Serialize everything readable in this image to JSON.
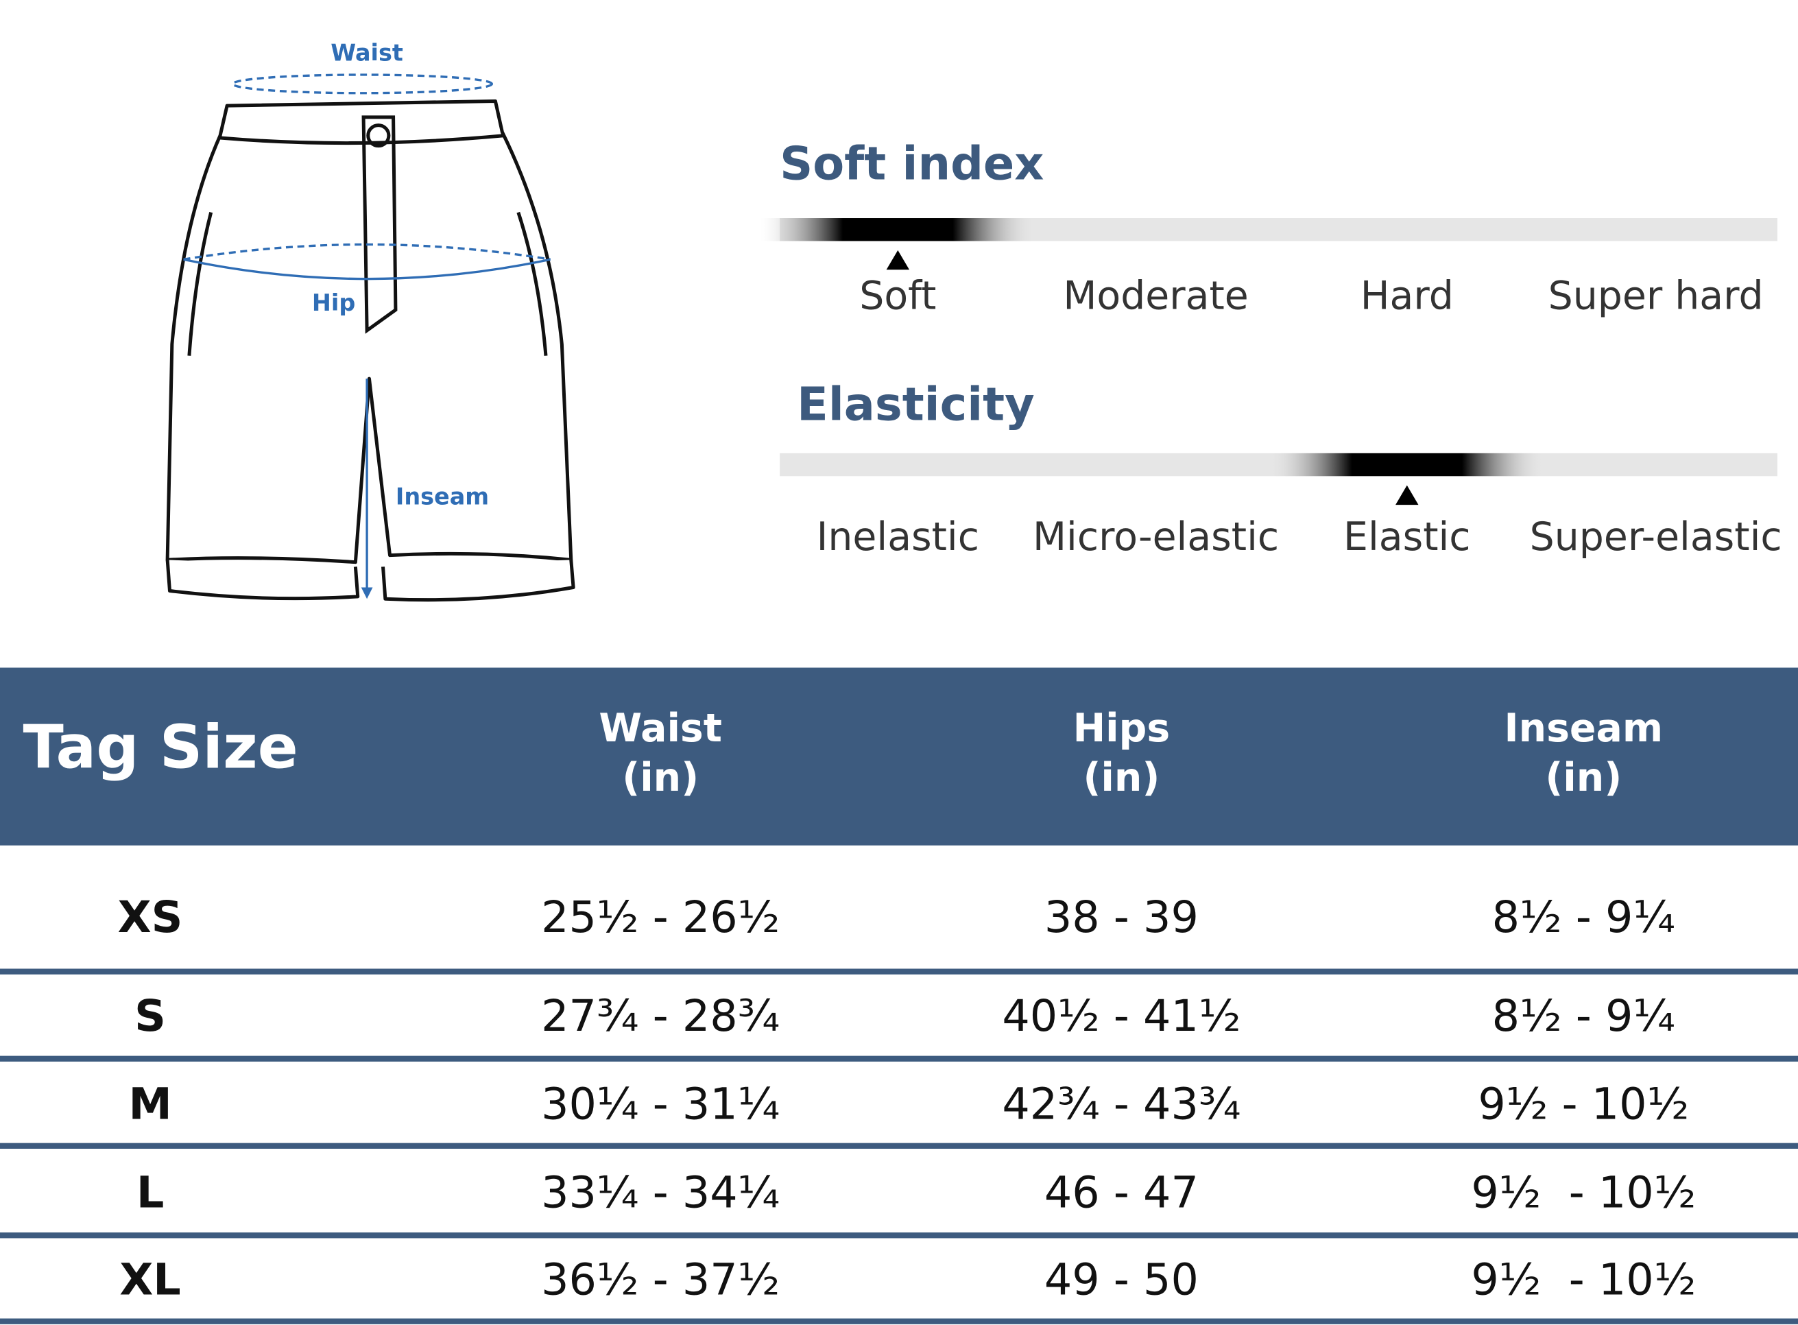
{
  "diagram": {
    "waist": "Waist",
    "hip": "Hip",
    "inseam": "Inseam"
  },
  "soft_index": {
    "title": "Soft index",
    "levels": [
      "Soft",
      "Moderate",
      "Hard",
      "Super hard"
    ],
    "selected": 0
  },
  "elasticity": {
    "title": "Elasticity",
    "levels": [
      "Inelastic",
      "Micro-elastic",
      "Elastic",
      "Super-elastic"
    ],
    "selected": 2
  },
  "table": {
    "columns": [
      {
        "name": "Tag Size"
      },
      {
        "name": "Waist",
        "unit": "(in)"
      },
      {
        "name": "Hips",
        "unit": "(in)"
      },
      {
        "name": "Inseam",
        "unit": "(in)"
      }
    ],
    "rows": [
      [
        "XS",
        "25½ - 26½",
        "38 - 39",
        "8½ - 9¼"
      ],
      [
        "S",
        "27¾ - 28¾",
        "40½ - 41½",
        "8½ - 9¼"
      ],
      [
        "M",
        "30¼ - 31¼",
        "42¾ - 43¾",
        "9½ - 10½"
      ],
      [
        "L",
        "33¼ - 34¼",
        "46 - 47",
        "9½  - 10½"
      ],
      [
        "XL",
        "36½ - 37½",
        "49 - 50",
        "9½  - 10½"
      ]
    ]
  }
}
